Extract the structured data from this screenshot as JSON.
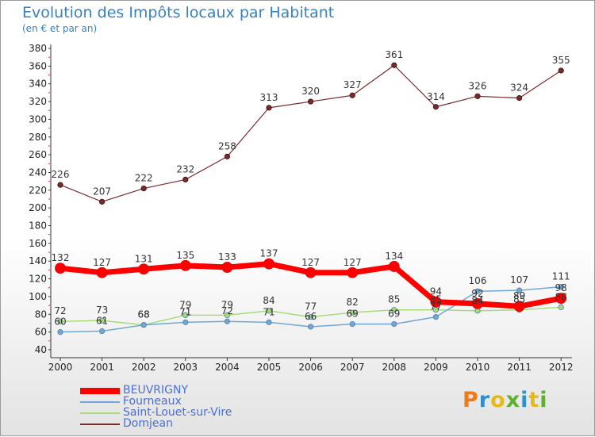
{
  "title": "Evolution des Impôts locaux par Habitant",
  "subtitle": "(en € et par an)",
  "logo": {
    "text": "Proxiti",
    "colors": [
      "#f07a1a",
      "#2f8fd0",
      "#e3b91c",
      "#5fb030",
      "#2f8fd0",
      "#e3b91c",
      "#5fb030"
    ]
  },
  "chart_data": {
    "type": "line",
    "x": [
      "2000",
      "2001",
      "2002",
      "2003",
      "2004",
      "2005",
      "2006",
      "2007",
      "2008",
      "2009",
      "2010",
      "2011",
      "2012"
    ],
    "ylim": [
      40,
      380
    ],
    "yticks": [
      40,
      60,
      80,
      100,
      120,
      140,
      160,
      180,
      200,
      220,
      240,
      260,
      280,
      300,
      320,
      340,
      360,
      380
    ],
    "grid": false,
    "legend_position": "bottom-left",
    "series": [
      {
        "name": "BEUVRIGNY",
        "color": "#ff0000",
        "values": [
          132,
          127,
          131,
          135,
          133,
          137,
          127,
          127,
          134,
          94,
          92,
          89,
          98
        ],
        "labels": [
          "132",
          "127",
          "131",
          "135",
          "133",
          "137",
          "127",
          "127",
          "134",
          "94",
          "92",
          "89",
          "98"
        ]
      },
      {
        "name": "Fourneaux",
        "color": "#6fa8d8",
        "values": [
          60,
          61,
          68,
          71,
          72,
          71,
          66,
          69,
          69,
          77,
          106,
          107,
          111
        ],
        "labels": [
          "60",
          "61",
          "68",
          "71",
          "72",
          "71",
          "66",
          "69",
          "69",
          "77",
          "106",
          "107",
          "111"
        ]
      },
      {
        "name": "Saint-Louet-sur-Vire",
        "color": "#a6dc78",
        "values": [
          72,
          73,
          68,
          79,
          79,
          84,
          77,
          82,
          85,
          85,
          84,
          85,
          88
        ],
        "labels": [
          "72",
          "73",
          "68",
          "79",
          "79",
          "84",
          "77",
          "82",
          "85",
          "85",
          "84",
          "85",
          "88"
        ]
      },
      {
        "name": "Domjean",
        "color": "#7a2a2a",
        "values": [
          226,
          207,
          222,
          232,
          258,
          313,
          320,
          327,
          361,
          314,
          326,
          324,
          355
        ],
        "labels": [
          "226",
          "207",
          "222",
          "232",
          "258",
          "313",
          "320",
          "327",
          "361",
          "314",
          "326",
          "324",
          "355"
        ]
      }
    ]
  }
}
